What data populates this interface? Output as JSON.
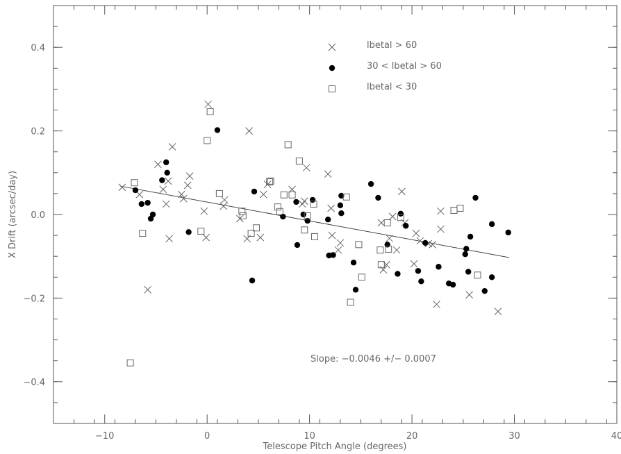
{
  "chart_data": {
    "type": "scatter",
    "xlabel": "Telescope Pitch Angle (degrees)",
    "ylabel": "X Drift (arcsec/day)",
    "xlim": [
      -15,
      40
    ],
    "ylim": [
      -0.5,
      0.5
    ],
    "x_ticks": [
      -10,
      0,
      10,
      20,
      30,
      40
    ],
    "y_ticks": [
      -0.4,
      -0.2,
      0.0,
      0.2,
      0.4
    ],
    "x_tick_labels": [
      "−10",
      "0",
      "10",
      "20",
      "30",
      "40"
    ],
    "y_tick_labels": [
      "−0.4",
      "−0.2",
      "0.0",
      "0.2",
      "0.4"
    ],
    "annotation": "Slope:  −0.0046 +/− 0.0007",
    "fit_line": {
      "x": [
        -8.5,
        29.5
      ],
      "y": [
        0.068,
        -0.103
      ]
    },
    "series": [
      {
        "name": "lbetal > 60",
        "marker": "x",
        "points": [
          [
            -8.3,
            0.065
          ],
          [
            -6.6,
            0.048
          ],
          [
            -5.8,
            -0.18
          ],
          [
            -4.8,
            0.12
          ],
          [
            -4.3,
            0.06
          ],
          [
            -4.0,
            0.025
          ],
          [
            -3.8,
            0.08
          ],
          [
            -3.7,
            -0.058
          ],
          [
            -3.4,
            0.162
          ],
          [
            -2.5,
            0.048
          ],
          [
            -2.3,
            0.038
          ],
          [
            -1.9,
            0.07
          ],
          [
            -1.7,
            0.092
          ],
          [
            -0.3,
            0.008
          ],
          [
            -0.1,
            -0.055
          ],
          [
            0.1,
            0.264
          ],
          [
            1.6,
            0.02
          ],
          [
            1.7,
            0.035
          ],
          [
            3.2,
            -0.01
          ],
          [
            3.9,
            -0.058
          ],
          [
            4.1,
            0.2
          ],
          [
            5.2,
            -0.055
          ],
          [
            5.5,
            0.048
          ],
          [
            5.9,
            0.072
          ],
          [
            8.3,
            0.06
          ],
          [
            9.3,
            0.025
          ],
          [
            9.5,
            0.032
          ],
          [
            9.7,
            0.112
          ],
          [
            11.8,
            0.097
          ],
          [
            12.1,
            0.015
          ],
          [
            12.2,
            -0.05
          ],
          [
            12.8,
            -0.085
          ],
          [
            13.0,
            -0.068
          ],
          [
            17.0,
            -0.02
          ],
          [
            17.2,
            -0.132
          ],
          [
            17.5,
            -0.12
          ],
          [
            17.8,
            -0.057
          ],
          [
            18.1,
            -0.005
          ],
          [
            18.5,
            -0.085
          ],
          [
            19.0,
            0.055
          ],
          [
            19.3,
            -0.02
          ],
          [
            20.2,
            -0.118
          ],
          [
            20.4,
            -0.045
          ],
          [
            20.8,
            -0.063
          ],
          [
            21.6,
            -0.07
          ],
          [
            22.0,
            -0.072
          ],
          [
            22.4,
            -0.215
          ],
          [
            22.8,
            0.008
          ],
          [
            22.8,
            -0.035
          ],
          [
            25.6,
            -0.192
          ],
          [
            28.4,
            -0.232
          ]
        ]
      },
      {
        "name": "30 < lbetal > 60",
        "marker": "filled-circle",
        "points": [
          [
            -7.0,
            0.058
          ],
          [
            -6.4,
            0.025
          ],
          [
            -5.8,
            0.028
          ],
          [
            -5.5,
            -0.01
          ],
          [
            -5.3,
            0.0
          ],
          [
            -4.4,
            0.082
          ],
          [
            -4.0,
            0.125
          ],
          [
            -3.9,
            0.1
          ],
          [
            -1.8,
            -0.042
          ],
          [
            1.0,
            0.202
          ],
          [
            4.4,
            -0.158
          ],
          [
            4.6,
            0.055
          ],
          [
            7.4,
            -0.005
          ],
          [
            8.7,
            0.03
          ],
          [
            8.8,
            -0.073
          ],
          [
            9.4,
            0.0
          ],
          [
            9.8,
            -0.015
          ],
          [
            10.3,
            0.035
          ],
          [
            11.8,
            -0.012
          ],
          [
            11.9,
            -0.098
          ],
          [
            12.3,
            -0.097
          ],
          [
            13.0,
            0.022
          ],
          [
            13.1,
            0.045
          ],
          [
            13.1,
            0.003
          ],
          [
            14.3,
            -0.115
          ],
          [
            14.5,
            -0.18
          ],
          [
            16.0,
            0.073
          ],
          [
            16.7,
            0.04
          ],
          [
            17.6,
            -0.072
          ],
          [
            18.6,
            -0.142
          ],
          [
            18.9,
            0.002
          ],
          [
            19.4,
            -0.027
          ],
          [
            20.6,
            -0.135
          ],
          [
            20.9,
            -0.16
          ],
          [
            21.3,
            -0.068
          ],
          [
            22.6,
            -0.125
          ],
          [
            23.6,
            -0.165
          ],
          [
            24.0,
            -0.168
          ],
          [
            25.2,
            -0.095
          ],
          [
            25.3,
            -0.082
          ],
          [
            25.5,
            -0.137
          ],
          [
            25.7,
            -0.053
          ],
          [
            26.2,
            0.04
          ],
          [
            27.1,
            -0.183
          ],
          [
            27.8,
            -0.023
          ],
          [
            27.8,
            -0.15
          ],
          [
            29.4,
            -0.043
          ]
        ]
      },
      {
        "name": "lbetal < 30",
        "marker": "open-square",
        "points": [
          [
            -7.5,
            -0.355
          ],
          [
            -7.1,
            0.076
          ],
          [
            -6.3,
            -0.045
          ],
          [
            -0.6,
            -0.04
          ],
          [
            0.0,
            0.177
          ],
          [
            0.3,
            0.246
          ],
          [
            1.2,
            0.05
          ],
          [
            3.4,
            0.008
          ],
          [
            3.5,
            -0.003
          ],
          [
            4.3,
            -0.045
          ],
          [
            4.8,
            -0.032
          ],
          [
            6.1,
            0.078
          ],
          [
            6.2,
            0.08
          ],
          [
            6.9,
            0.018
          ],
          [
            7.1,
            0.007
          ],
          [
            7.5,
            0.047
          ],
          [
            7.9,
            0.167
          ],
          [
            8.3,
            0.047
          ],
          [
            9.0,
            0.128
          ],
          [
            9.5,
            -0.037
          ],
          [
            9.8,
            -0.003
          ],
          [
            10.4,
            0.025
          ],
          [
            10.5,
            -0.053
          ],
          [
            13.6,
            0.042
          ],
          [
            14.0,
            -0.21
          ],
          [
            14.8,
            -0.072
          ],
          [
            15.1,
            -0.15
          ],
          [
            16.9,
            -0.085
          ],
          [
            17.0,
            -0.12
          ],
          [
            17.6,
            -0.02
          ],
          [
            17.7,
            -0.083
          ],
          [
            18.9,
            -0.007
          ],
          [
            24.1,
            0.01
          ],
          [
            24.7,
            0.015
          ],
          [
            26.4,
            -0.145
          ]
        ]
      }
    ],
    "grid": false,
    "legend_position": "top-center"
  }
}
